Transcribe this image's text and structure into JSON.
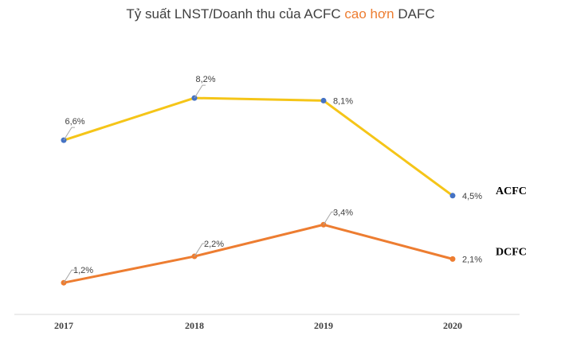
{
  "title": {
    "before": "Tỷ suất LNST/Doanh thu của ACFC ",
    "highlight": "cao hơn",
    "after": " DAFC"
  },
  "colors": {
    "acfc_line": "#F5C518",
    "dcfc_line": "#ED7D31",
    "acfc_marker": "#4472C4",
    "dcfc_marker": "#ED7D31",
    "title_highlight": "#ED7D31",
    "axis": "#D9D9D9"
  },
  "chart_data": {
    "type": "line",
    "categories": [
      "2017",
      "2018",
      "2019",
      "2020"
    ],
    "series": [
      {
        "name": "ACFC",
        "values": [
          6.6,
          8.2,
          8.1,
          4.5
        ],
        "labels": [
          "6,6%",
          "8,2%",
          "8,1%",
          "4,5%"
        ]
      },
      {
        "name": "DCFC",
        "values": [
          1.2,
          2.2,
          3.4,
          2.1
        ],
        "labels": [
          "1,2%",
          "2,2%",
          "3,4%",
          "2,1%"
        ]
      }
    ],
    "ylim": [
      0,
      9.5
    ],
    "grid": false,
    "legend": "series labels at right end of lines"
  }
}
